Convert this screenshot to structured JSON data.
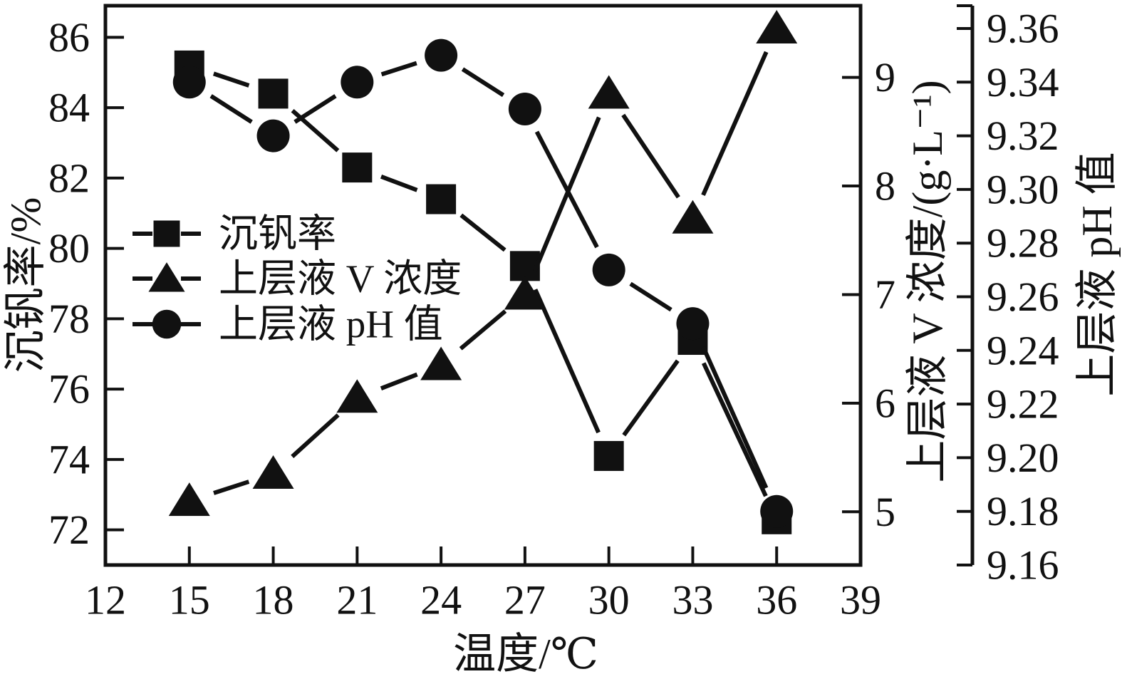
{
  "figure": {
    "background": "#ffffff",
    "ink": "#111111"
  },
  "chart_data": {
    "type": "line",
    "title": "",
    "xlabel": "温度/℃",
    "x": [
      15,
      18,
      21,
      24,
      27,
      30,
      33,
      36
    ],
    "xlim": [
      12,
      39
    ],
    "x_tick_labels": [
      "12",
      "15",
      "18",
      "21",
      "24",
      "27",
      "30",
      "33",
      "36",
      "39"
    ],
    "x_tick_values": [
      12,
      15,
      18,
      21,
      24,
      27,
      30,
      33,
      36,
      39
    ],
    "x_tick_marks": [
      15,
      18,
      21,
      24,
      27,
      30,
      33,
      36
    ],
    "grid": "off",
    "axes": {
      "left": {
        "label": "沉钒率/%",
        "ticks": [
          "86",
          "84",
          "82",
          "80",
          "78",
          "76",
          "74",
          "72"
        ],
        "tick_values": [
          86,
          84,
          82,
          80,
          78,
          76,
          74,
          72
        ],
        "min": 71.0,
        "max": 86.9
      },
      "right_v": {
        "label": "上层液 V 浓度/(g·L⁻¹)",
        "ticks": [
          "9",
          "8",
          "7",
          "6",
          "5"
        ],
        "tick_values": [
          9,
          8,
          7,
          6,
          5
        ],
        "min": 4.51,
        "max": 9.66
      },
      "right_ph": {
        "label": "上层液 pH 值",
        "ticks": [
          "9.36",
          "9.34",
          "9.32",
          "9.30",
          "9.28",
          "9.26",
          "9.24",
          "9.22",
          "9.20",
          "9.18",
          "9.16"
        ],
        "tick_values": [
          9.36,
          9.34,
          9.32,
          9.3,
          9.28,
          9.26,
          9.24,
          9.22,
          9.2,
          9.18,
          9.16
        ],
        "min": 9.16,
        "max": 9.3685
      }
    },
    "series": [
      {
        "name": "沉钒率",
        "axis": "left",
        "marker": "square",
        "values": [
          85.2,
          84.4,
          82.3,
          81.4,
          79.5,
          74.1,
          77.4,
          72.3
        ]
      },
      {
        "name": "上层液 V 浓度",
        "axis": "right_v",
        "marker": "triangle",
        "values": [
          5.1,
          5.35,
          6.05,
          6.35,
          7.0,
          8.85,
          7.7,
          9.45
        ]
      },
      {
        "name": "上层液 pH 值",
        "axis": "right_ph",
        "marker": "circle",
        "values": [
          9.34,
          9.32,
          9.34,
          9.35,
          9.33,
          9.27,
          9.25,
          9.18
        ]
      }
    ],
    "legend": {
      "position": "inside-left",
      "items": [
        {
          "label": "沉钒率",
          "marker": "square"
        },
        {
          "label": "上层液 V 浓度",
          "marker": "triangle"
        },
        {
          "label": "上层液 pH 值",
          "marker": "circle"
        }
      ]
    }
  }
}
